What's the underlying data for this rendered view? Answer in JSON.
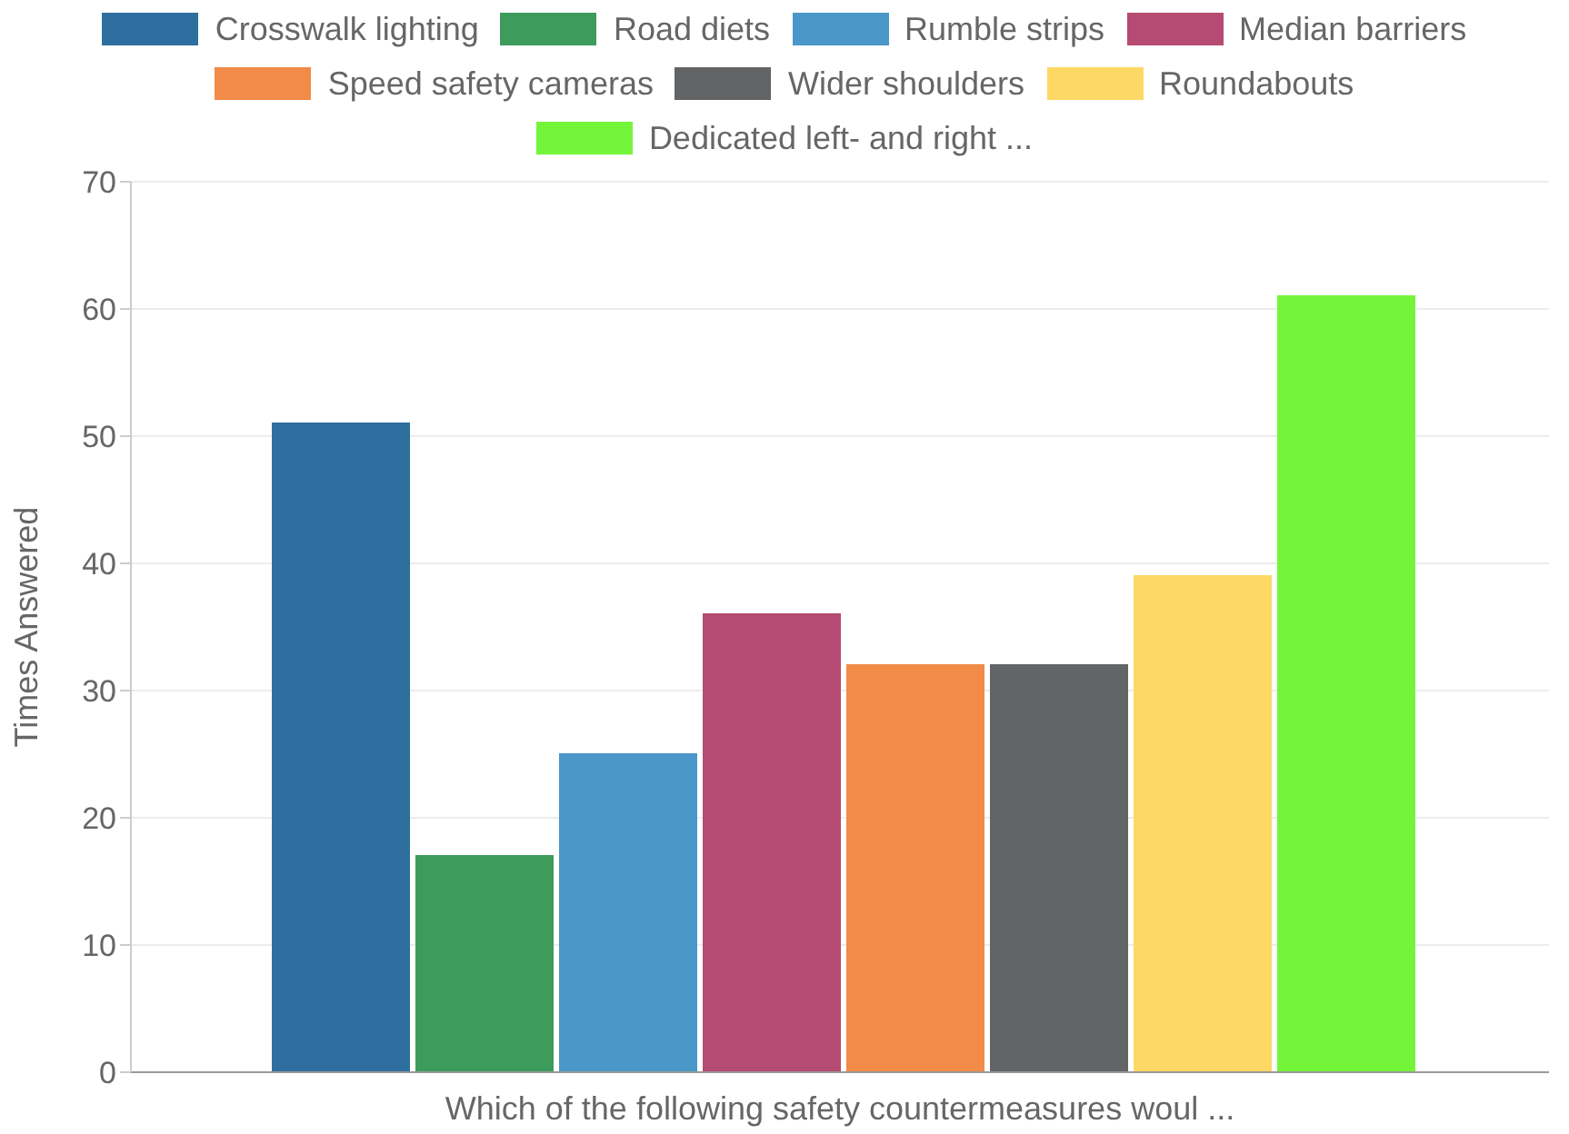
{
  "chart_data": {
    "type": "bar",
    "xlabel": "Which of the following safety countermeasures woul ...",
    "ylabel": "Times Answered",
    "categories": [
      null
    ],
    "series": [
      {
        "name": "Crosswalk lighting",
        "color": "#2f6f9f",
        "values": [
          51
        ]
      },
      {
        "name": "Road diets",
        "color": "#3d9c5c",
        "values": [
          17
        ]
      },
      {
        "name": "Rumble strips",
        "color": "#4a97c9",
        "values": [
          25
        ]
      },
      {
        "name": "Median barriers",
        "color": "#b54a72",
        "values": [
          36
        ]
      },
      {
        "name": "Speed safety cameras",
        "color": "#f28a48",
        "values": [
          32
        ]
      },
      {
        "name": "Wider shoulders",
        "color": "#626466",
        "values": [
          32
        ]
      },
      {
        "name": "Roundabouts",
        "color": "#fdd865",
        "values": [
          39
        ]
      },
      {
        "name": "Dedicated left- and right ...",
        "color": "#74f53a",
        "values": [
          61
        ]
      }
    ],
    "ylim": [
      0,
      70
    ],
    "yticks": [
      0,
      10,
      20,
      30,
      40,
      50,
      60,
      70
    ],
    "grid": "y",
    "legend": "top",
    "tick_labels": "y"
  }
}
